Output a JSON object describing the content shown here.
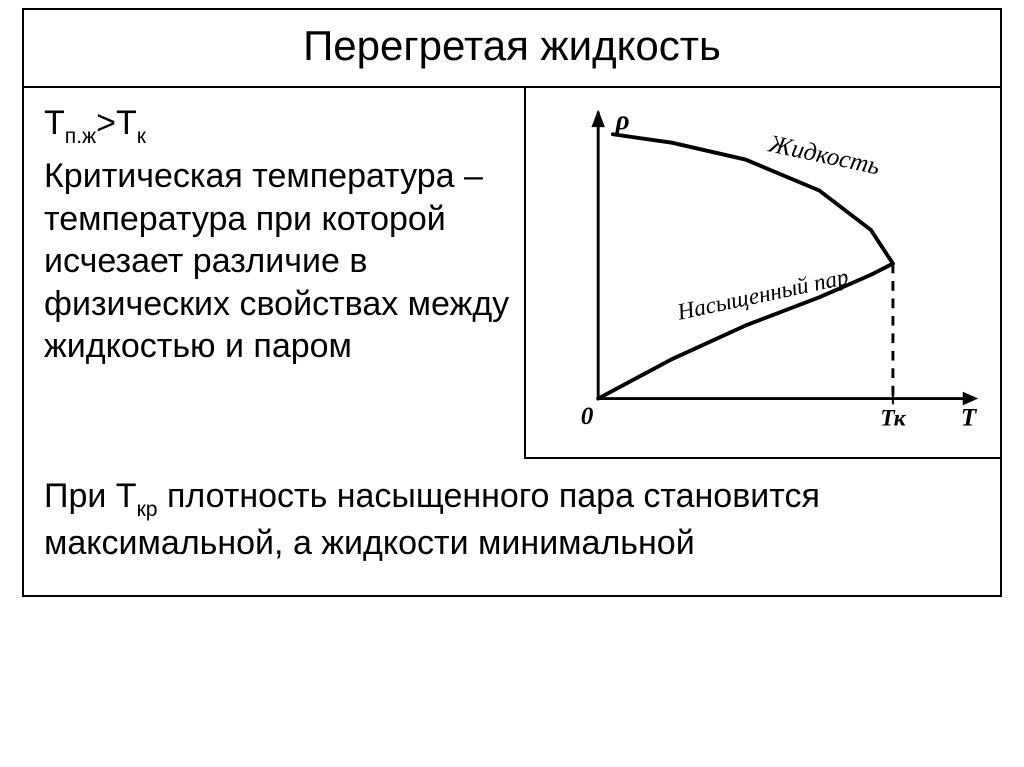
{
  "title": "Перегретая жидкость",
  "formula": {
    "t1": "Т",
    "t1_sub": "п.ж",
    "gt": ">",
    "t2": "Т",
    "t2_sub": "к"
  },
  "definition": "Критическая температура – температура при которой исчезает различие в физических свойствах между жидкостью и паром",
  "bottom": {
    "pre": "При Т",
    "sub": "кр",
    "post": " плотность насыщенного пара становится максимальной, а жидкости минимальной"
  },
  "chart": {
    "type": "line",
    "x_label": "Т",
    "y_label": "ρ",
    "origin_label": "0",
    "tick_label": "Тк",
    "curve_upper_label": "Жидкость",
    "curve_lower_label": "Насыщенный пар",
    "axis_color": "#000000",
    "curve_color": "#000000",
    "line_width_axes": 3,
    "line_width_curve": 4,
    "dash_color": "#000000",
    "background_color": "#ffffff",
    "label_fontsize": 22,
    "xlim": [
      0,
      100
    ],
    "ylim": [
      0,
      100
    ],
    "critical_T": 80,
    "critical_rho": 48,
    "upper_curve": [
      [
        4,
        94
      ],
      [
        20,
        91
      ],
      [
        40,
        85
      ],
      [
        60,
        74
      ],
      [
        74,
        60
      ],
      [
        80,
        48
      ]
    ],
    "lower_curve": [
      [
        0,
        0
      ],
      [
        20,
        14
      ],
      [
        40,
        26
      ],
      [
        60,
        36
      ],
      [
        74,
        44
      ],
      [
        80,
        48
      ]
    ]
  }
}
